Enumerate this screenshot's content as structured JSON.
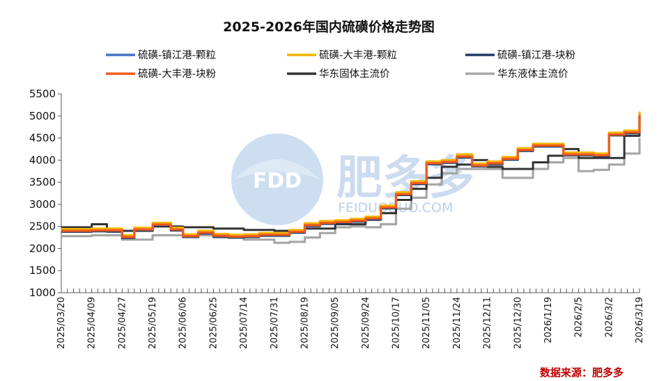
{
  "chart_data": {
    "type": "line",
    "title": "2025-2026年国内硫磺价格走势图",
    "source": "数据来源：肥多多",
    "watermark": {
      "brand": "肥多多",
      "logo": "FDD",
      "url": "FEIDUODUO.COM"
    },
    "ylim": [
      1000,
      5500
    ],
    "yticks": [
      1000,
      1500,
      2000,
      2500,
      3000,
      3500,
      4000,
      4500,
      5000,
      5500
    ],
    "x_tick_labels": [
      "2025/03/20",
      "2025/04/09",
      "2025/04/27",
      "2025/05/19",
      "2025/06/06",
      "2025/06/25",
      "2025/07/14",
      "2025/07/31",
      "2025/08/19",
      "2025/09/05",
      "2025/09/24",
      "2025/10/17",
      "2025/11/05",
      "2025/11/24",
      "2025/12/11",
      "2025/12/30",
      "2026/1/19",
      "2026/2/5",
      "2026/3/2",
      "2026/3/19"
    ],
    "legend_position": "top",
    "grid": false,
    "series": [
      {
        "name": "硫磺-镇江港-颗粒",
        "color": "#4472c4",
        "x": [
          0,
          1,
          2,
          2.4,
          3,
          3.6,
          4,
          4.5,
          5,
          5.5,
          6,
          6.5,
          7,
          7.5,
          8,
          8.5,
          9,
          9.5,
          10,
          10.5,
          11,
          11.5,
          12,
          12.5,
          13,
          13.5,
          14,
          14.5,
          15,
          15.5,
          16,
          16.5,
          17,
          17.5,
          18,
          18.5,
          19
        ],
        "values": [
          2420,
          2430,
          2280,
          2450,
          2560,
          2450,
          2300,
          2380,
          2310,
          2290,
          2300,
          2330,
          2330,
          2400,
          2550,
          2600,
          2620,
          2650,
          2700,
          2950,
          3250,
          3500,
          3950,
          3980,
          4100,
          3900,
          3950,
          4050,
          4250,
          4350,
          4350,
          4150,
          4150,
          4130,
          4600,
          4650,
          5050
        ]
      },
      {
        "name": "硫磺-大丰港-颗粒",
        "color": "#f4b400",
        "x": [
          0,
          1,
          2,
          2.4,
          3,
          3.6,
          4,
          4.5,
          5,
          5.5,
          6,
          6.5,
          7,
          7.5,
          8,
          8.5,
          9,
          9.5,
          10,
          10.5,
          11,
          11.5,
          12,
          12.5,
          13,
          13.5,
          14,
          14.5,
          15,
          15.5,
          16,
          16.5,
          17,
          17.5,
          18,
          18.5,
          19
        ],
        "values": [
          2440,
          2450,
          2300,
          2470,
          2580,
          2470,
          2320,
          2400,
          2330,
          2310,
          2320,
          2350,
          2350,
          2420,
          2570,
          2620,
          2640,
          2670,
          2720,
          2970,
          3270,
          3520,
          3970,
          4000,
          4130,
          3920,
          3970,
          4070,
          4270,
          4370,
          4370,
          4170,
          4170,
          4150,
          4620,
          4670,
          5100
        ]
      },
      {
        "name": "硫磺-镇江港-块粉",
        "color": "#203864",
        "x": [
          0,
          1,
          2,
          2.4,
          3,
          3.6,
          4,
          4.5,
          5,
          5.5,
          6,
          6.5,
          7,
          7.5,
          8,
          8.5,
          9,
          9.5,
          10,
          10.5,
          11,
          11.5,
          12,
          12.5,
          13,
          13.5,
          14,
          14.5,
          15,
          15.5,
          16,
          16.5,
          17,
          17.5,
          18,
          18.5,
          19
        ],
        "values": [
          2380,
          2390,
          2240,
          2410,
          2520,
          2410,
          2260,
          2340,
          2270,
          2250,
          2260,
          2290,
          2290,
          2360,
          2510,
          2560,
          2580,
          2610,
          2660,
          2910,
          3210,
          3460,
          3910,
          3940,
          4060,
          3860,
          3910,
          4010,
          4210,
          4310,
          4310,
          4110,
          4110,
          4090,
          4560,
          4610,
          5000
        ]
      },
      {
        "name": "硫磺-大丰港-块粉",
        "color": "#f05a1e",
        "x": [
          0,
          1,
          2,
          2.4,
          3,
          3.6,
          4,
          4.5,
          5,
          5.5,
          6,
          6.5,
          7,
          7.5,
          8,
          8.5,
          9,
          9.5,
          10,
          10.5,
          11,
          11.5,
          12,
          12.5,
          13,
          13.5,
          14,
          14.5,
          15,
          15.5,
          16,
          16.5,
          17,
          17.5,
          18,
          18.5,
          19
        ],
        "values": [
          2400,
          2410,
          2260,
          2430,
          2540,
          2430,
          2280,
          2360,
          2290,
          2270,
          2280,
          2310,
          2310,
          2380,
          2530,
          2580,
          2600,
          2630,
          2680,
          2930,
          3230,
          3480,
          3930,
          3960,
          4080,
          3880,
          3930,
          4030,
          4230,
          4330,
          4330,
          4130,
          4130,
          4110,
          4580,
          4630,
          5020
        ]
      },
      {
        "name": "华东固体主流价",
        "color": "#333333",
        "x": [
          0,
          1,
          1.5,
          2,
          3,
          4,
          5,
          6,
          7,
          8,
          9,
          10,
          10.5,
          11,
          11.5,
          12,
          12.5,
          13,
          13.5,
          14,
          14.5,
          15,
          15.5,
          16,
          16.5,
          17,
          17.5,
          18,
          18.5,
          19
        ],
        "values": [
          2480,
          2550,
          2380,
          2400,
          2500,
          2480,
          2450,
          2420,
          2400,
          2450,
          2550,
          2650,
          2800,
          3100,
          3350,
          3600,
          3850,
          3900,
          4000,
          3850,
          3800,
          3800,
          3950,
          4100,
          4250,
          4050,
          4050,
          4050,
          4550,
          4850
        ]
      },
      {
        "name": "华东液体主流价",
        "color": "#a6a6a6",
        "x": [
          0,
          1,
          2,
          3,
          4,
          5,
          6,
          7,
          7.5,
          8,
          8.5,
          9,
          9.5,
          10,
          10.5,
          11,
          11.5,
          12,
          12.5,
          13,
          13.5,
          14,
          14.5,
          15,
          15.5,
          16,
          16.5,
          17,
          17.5,
          18,
          18.5,
          19
        ],
        "values": [
          2280,
          2300,
          2200,
          2300,
          2300,
          2250,
          2200,
          2130,
          2150,
          2250,
          2350,
          2480,
          2500,
          2480,
          2550,
          2900,
          3150,
          3450,
          3700,
          3800,
          3800,
          3800,
          3600,
          3600,
          3800,
          3950,
          4050,
          3750,
          3780,
          3900,
          4150,
          4500
        ]
      }
    ]
  }
}
